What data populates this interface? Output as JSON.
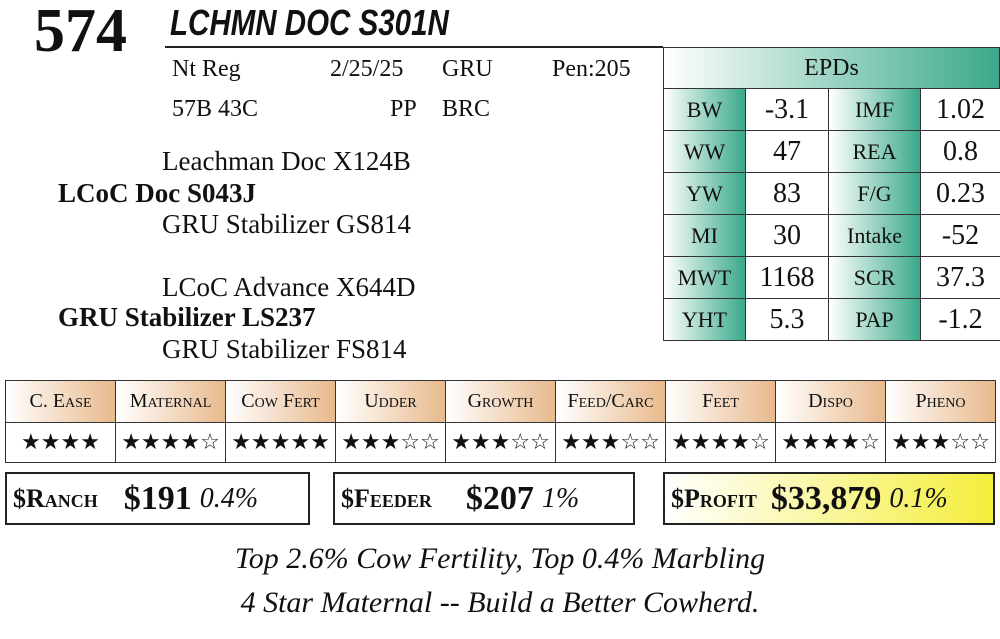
{
  "lot": "574",
  "name": "LCHMN DOC S301N",
  "info": {
    "rows": [
      [
        "Nt Reg",
        "2/25/25",
        "GRU",
        "Pen:205"
      ],
      [
        "57B 43C",
        "PP",
        "BRC"
      ]
    ]
  },
  "pedigree": {
    "sire_sire": "Leachman Doc X124B",
    "sire": "LCoC Doc S043J",
    "sire_dam": "GRU Stabilizer GS814",
    "dam_sire": "LCoC Advance X644D",
    "dam": "GRU Stabilizer LS237",
    "dam_dam": "GRU Stabilizer FS814"
  },
  "epds": {
    "title": "EPDs",
    "rows": [
      [
        "BW",
        "-3.1",
        "IMF",
        "1.02"
      ],
      [
        "WW",
        "47",
        "REA",
        "0.8"
      ],
      [
        "YW",
        "83",
        "F/G",
        "0.23"
      ],
      [
        "MI",
        "30",
        "Intake",
        "-52"
      ],
      [
        "MWT",
        "1168",
        "SCR",
        "37.3"
      ],
      [
        "YHT",
        "5.3",
        "PAP",
        "-1.2"
      ]
    ]
  },
  "ratings": {
    "headers": [
      "C. Ease",
      "Maternal",
      "Cow Fert",
      "Udder",
      "Growth",
      "Feed/Carc",
      "Feet",
      "Dispo",
      "Pheno"
    ],
    "stars": [
      "★★★★",
      "★★★★☆",
      "★★★★★",
      "★★★☆☆",
      "★★★☆☆",
      "★★★☆☆",
      "★★★★☆",
      "★★★★☆",
      "★★★☆☆"
    ]
  },
  "indexes": [
    {
      "name": "$Ranch",
      "value": "$191",
      "rank": "0.4%"
    },
    {
      "name": "$Feeder",
      "value": "$207",
      "rank": "1%"
    },
    {
      "name": "$Profit",
      "value": "$33,879",
      "rank": "0.1%"
    }
  ],
  "notes": [
    "Top 2.6% Cow Fertility, Top 0.4% Marbling",
    "4 Star Maternal -- Build a Better Cowherd."
  ]
}
